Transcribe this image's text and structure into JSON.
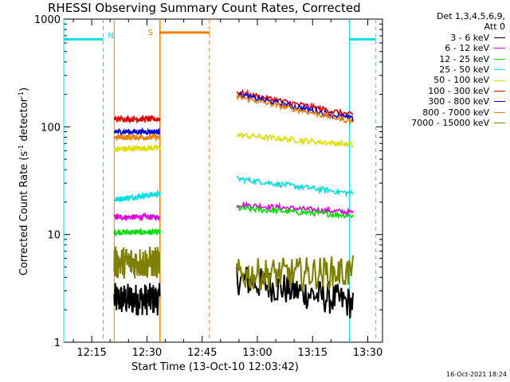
{
  "chart_data": {
    "type": "line",
    "title": "RHESSI Observing Summary Count Rates, Corrected",
    "xlabel": "Start Time (13-Oct-10 12:03:42)",
    "ylabel": "Corrected Count Rate (s",
    "ylabel_sup1": "-1",
    "ylabel_mid": " detector",
    "ylabel_sup2": "-1",
    "ylabel_end": ")",
    "y_scale": "log",
    "ylim": [
      1,
      1000
    ],
    "xlim_min": [
      3.7,
      90.3
    ],
    "y_ticks": [
      {
        "value": 1,
        "label": "1"
      },
      {
        "value": 10,
        "label": "10"
      },
      {
        "value": 100,
        "label": "100"
      },
      {
        "value": 1000,
        "label": "1000"
      }
    ],
    "x_ticks": [
      {
        "value": 11.3,
        "label": "12:15"
      },
      {
        "value": 26.3,
        "label": "12:30"
      },
      {
        "value": 41.3,
        "label": "12:45"
      },
      {
        "value": 56.3,
        "label": "13:00"
      },
      {
        "value": 71.3,
        "label": "13:15"
      },
      {
        "value": 86.3,
        "label": "13:30"
      }
    ],
    "legend_header": [
      "Det 1,3,4,5,6,9,",
      "Att 0"
    ],
    "legend_position": "outside-right",
    "timestamp": "16-Oct-2021 18:24",
    "segments": [
      [
        17.4,
        29.8
      ],
      [
        50.7,
        82.3
      ]
    ],
    "series": [
      {
        "name": "3 - 6 keV",
        "color": "#000000",
        "seg_values": [
          [
            2.5,
            2.5
          ],
          [
            3.9,
            2.3
          ]
        ]
      },
      {
        "name": "6 - 12 keV",
        "color": "#e000e0",
        "seg_values": [
          [
            14.5,
            14.5
          ],
          [
            19,
            16
          ]
        ]
      },
      {
        "name": "12 - 25 keV",
        "color": "#00e000",
        "seg_values": [
          [
            10.5,
            10.5
          ],
          [
            17.5,
            15
          ]
        ]
      },
      {
        "name": "25 - 50 keV",
        "color": "#00e0e0",
        "seg_values": [
          [
            21,
            24
          ],
          [
            33,
            24
          ]
        ]
      },
      {
        "name": "50 - 100 keV",
        "color": "#e0e000",
        "seg_values": [
          [
            62,
            64
          ],
          [
            84,
            68
          ]
        ]
      },
      {
        "name": "100 - 300 keV",
        "color": "#e00000",
        "seg_values": [
          [
            118,
            118
          ],
          [
            210,
            128
          ]
        ]
      },
      {
        "name": "300 - 800 keV",
        "color": "#0000e0",
        "seg_values": [
          [
            90,
            90
          ],
          [
            200,
            118
          ]
        ]
      },
      {
        "name": "800 - 7000 keV",
        "color": "#f08000",
        "seg_values": [
          [
            80,
            80
          ],
          [
            190,
            112
          ]
        ]
      },
      {
        "name": "7000 - 15000 keV",
        "color": "#808000",
        "seg_values": [
          [
            5.5,
            5.5
          ],
          [
            4.2,
            4.5
          ]
        ]
      }
    ],
    "annotations": {
      "night_intervals": [
        [
          3.7,
          14.4
        ],
        [
          81.3,
          88.5
        ]
      ],
      "night_level": 650,
      "night_color": "#00e0e0",
      "night_label": "N",
      "saa_intervals": [
        [
          29.6,
          43.3
        ]
      ],
      "saa_level": 750,
      "saa_color": "#f08000",
      "saa_label": "S",
      "orange_vlines_solid": [
        17.4,
        29.8
      ],
      "orange_vlines_dashed": [
        43.3
      ],
      "cyan_vlines_solid": [
        3.7,
        29.9,
        81.3
      ],
      "cyan_vlines_dashed": [
        14.4,
        88.5
      ]
    }
  }
}
